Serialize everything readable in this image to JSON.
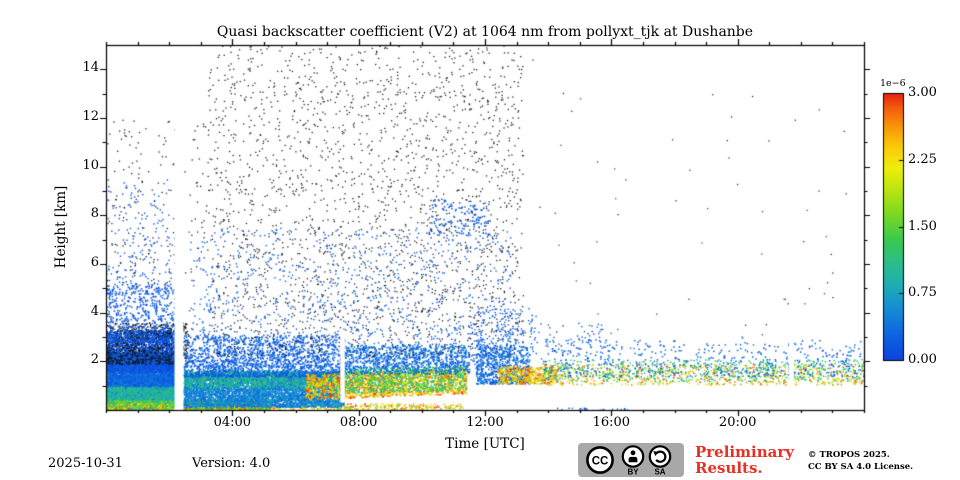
{
  "footer": {
    "date": "2025-10-31",
    "version": "Version: 4.0"
  },
  "license": {
    "preliminary_line1": "Preliminary",
    "preliminary_line2": "Results.",
    "copyright": "© TROPOS 2025.",
    "license_line": "CC BY SA 4.0 License.",
    "badge": {
      "cc": "CC",
      "by": "BY",
      "sa": "SA"
    }
  },
  "colors": {
    "preliminary_red": "#e73023",
    "badge_bg": "#a8a8a8",
    "noise_black": "#151515",
    "frame": "#000000"
  },
  "chart_data": {
    "type": "scatter",
    "title": "Quasi backscatter coefficient (V2) at 1064 nm from pollyxt_tjk at Dushanbe",
    "xlabel": "Time [UTC]",
    "ylabel": "Height [km]",
    "x_range_hours": [
      0,
      24
    ],
    "x_major_ticks": [
      {
        "hour": 4,
        "label": "04:00"
      },
      {
        "hour": 8,
        "label": "08:00"
      },
      {
        "hour": 12,
        "label": "12:00"
      },
      {
        "hour": 16,
        "label": "16:00"
      },
      {
        "hour": 20,
        "label": "20:00"
      }
    ],
    "x_minor_step_hours": 1,
    "y_range_km": [
      0,
      15
    ],
    "y_major_ticks": [
      2,
      4,
      6,
      8,
      10,
      12,
      14
    ],
    "y_minor_step_km": 1,
    "grid": false,
    "colorbar": {
      "scale_label": "1e−6",
      "min": 0.0,
      "max": 3.0,
      "tick_labels": [
        "3.00",
        "2.25",
        "1.50",
        "0.75",
        "0.00"
      ],
      "tick_values": [
        3.0,
        2.25,
        1.5,
        0.75,
        0.0
      ],
      "colormap": [
        [
          0.0,
          "#0b44dd"
        ],
        [
          0.1,
          "#0f66e2"
        ],
        [
          0.2,
          "#1690d2"
        ],
        [
          0.28,
          "#1fadb4"
        ],
        [
          0.36,
          "#2bbd8a"
        ],
        [
          0.45,
          "#3bc951"
        ],
        [
          0.55,
          "#7ed921"
        ],
        [
          0.65,
          "#c3e70e"
        ],
        [
          0.72,
          "#f0ee0a"
        ],
        [
          0.8,
          "#fbc90a"
        ],
        [
          0.87,
          "#f99908"
        ],
        [
          0.94,
          "#f4600d"
        ],
        [
          1.0,
          "#e72113"
        ]
      ]
    },
    "regions": [
      {
        "name": "night-plume-teal",
        "t": [
          0,
          2.2
        ],
        "h": [
          0.2,
          1.45
        ],
        "n": 3200,
        "v": [
          0.3,
          0.85
        ],
        "s": 1.8
      },
      {
        "name": "night-plume-green",
        "t": [
          0,
          2.2
        ],
        "h": [
          0.25,
          1.15
        ],
        "n": 1100,
        "v": [
          0.7,
          1.25
        ],
        "s": 1.7
      },
      {
        "name": "night-plume-blue",
        "t": [
          0,
          2.2
        ],
        "h": [
          1.0,
          2.4
        ],
        "n": 2600,
        "v": [
          0.1,
          0.5
        ],
        "s": 1.8
      },
      {
        "name": "night-plume-deepblue",
        "t": [
          0,
          2.2
        ],
        "h": [
          1.6,
          3.3
        ],
        "n": 1700,
        "v": [
          0.0,
          0.3
        ],
        "s": 1.7,
        "bias": 1.2
      },
      {
        "name": "night-dark-specks",
        "t": [
          0,
          2.6
        ],
        "h": [
          1.9,
          3.6
        ],
        "n": 900,
        "black": true,
        "s": 1.3,
        "bias": 1.2
      },
      {
        "name": "night-upper-blue",
        "t": [
          0,
          2.2
        ],
        "h": [
          2.8,
          5.2
        ],
        "n": 650,
        "v": [
          0.0,
          0.35
        ],
        "s": 1.5,
        "bias": 1.7
      },
      {
        "name": "night-top-sparse",
        "t": [
          0,
          2.3
        ],
        "h": [
          4.8,
          9.5
        ],
        "n": 260,
        "v": [
          0.0,
          0.3
        ],
        "s": 1.4,
        "bias": 1.9
      },
      {
        "name": "night-high-specks",
        "t": [
          0,
          3.2
        ],
        "h": [
          5.0,
          12.0
        ],
        "n": 170,
        "black": true,
        "s": 1.25
      },
      {
        "name": "bottom-yellow-band",
        "t": [
          0,
          5.2
        ],
        "h": [
          0.03,
          0.42
        ],
        "n": 2400,
        "v": [
          0.85,
          1.75
        ],
        "s": 1.8
      },
      {
        "name": "bottom-hot-specks",
        "t": [
          0,
          4.5
        ],
        "h": [
          0.02,
          0.3
        ],
        "n": 200,
        "v": [
          1.9,
          3.0
        ],
        "s": 1.5
      },
      {
        "name": "bottom-red-line",
        "t": [
          3.5,
          11.3
        ],
        "h": [
          0.03,
          0.28
        ],
        "n": 430,
        "v": [
          1.5,
          3.0
        ],
        "s": 1.5
      },
      {
        "name": "morning-teal-mass",
        "t": [
          2.45,
          7.5
        ],
        "h": [
          0.15,
          1.6
        ],
        "n": 4300,
        "v": [
          0.25,
          0.8
        ],
        "s": 1.8
      },
      {
        "name": "morning-green-top",
        "t": [
          2.45,
          7.6
        ],
        "h": [
          0.95,
          1.65
        ],
        "n": 950,
        "v": [
          0.7,
          1.3
        ],
        "s": 1.7
      },
      {
        "name": "morning-blue-upper",
        "t": [
          2.45,
          7.5
        ],
        "h": [
          1.4,
          3.1
        ],
        "n": 1500,
        "v": [
          0.05,
          0.45
        ],
        "s": 1.6,
        "bias": 1.5
      },
      {
        "name": "red-band",
        "t": [
          6.3,
          11.4
        ],
        "h": [
          0.45,
          1.5
        ],
        "n": 1500,
        "v": [
          1.8,
          3.0
        ],
        "s": 1.7,
        "shift": 0.25
      },
      {
        "name": "midmorning-yellow",
        "t": [
          7.5,
          11.4
        ],
        "h": [
          0.7,
          1.7
        ],
        "n": 750,
        "v": [
          0.9,
          1.7
        ],
        "s": 1.6,
        "shift": 0.15
      },
      {
        "name": "midmorning-teal-upper",
        "t": [
          7.5,
          11.5
        ],
        "h": [
          1.5,
          2.7
        ],
        "n": 850,
        "v": [
          0.1,
          0.6
        ],
        "s": 1.6
      },
      {
        "name": "day-noise-black",
        "t": [
          3.2,
          13.2
        ],
        "h": [
          2.2,
          15.0
        ],
        "n": 2300,
        "black": true,
        "s": 1.25,
        "bias": 1.1
      },
      {
        "name": "day-noise-blue",
        "t": [
          2.6,
          12.8
        ],
        "h": [
          1.8,
          7.5
        ],
        "n": 1400,
        "v": [
          0.0,
          0.45
        ],
        "s": 1.4,
        "bias": 1.7
      },
      {
        "name": "cirrus-patch",
        "t": [
          10.2,
          12.1
        ],
        "h": [
          7.2,
          8.7
        ],
        "n": 140,
        "v": [
          0.0,
          0.35
        ],
        "s": 1.5
      },
      {
        "name": "midday-blue-cluster",
        "t": [
          11.7,
          13.4
        ],
        "h": [
          1.1,
          2.7
        ],
        "n": 620,
        "v": [
          0.05,
          0.6
        ],
        "s": 1.6,
        "bias": 1.2
      },
      {
        "name": "midday-upper-sparse",
        "t": [
          11.6,
          13.6
        ],
        "h": [
          2.5,
          4.2
        ],
        "n": 160,
        "v": [
          0.0,
          0.4
        ],
        "s": 1.4
      },
      {
        "name": "early-afternoon-orange",
        "t": [
          12.4,
          14.3
        ],
        "h": [
          1.1,
          1.8
        ],
        "n": 420,
        "v": [
          1.7,
          3.0
        ],
        "s": 1.6
      },
      {
        "name": "evening-layer-warm",
        "t": [
          13.8,
          24
        ],
        "h": [
          1.05,
          1.9
        ],
        "n": 760,
        "v": [
          1.5,
          3.0
        ],
        "s": 1.5
      },
      {
        "name": "evening-layer-green",
        "t": [
          13.8,
          24
        ],
        "h": [
          1.2,
          2.1
        ],
        "n": 540,
        "v": [
          0.7,
          1.5
        ],
        "s": 1.5
      },
      {
        "name": "evening-layer-blue",
        "t": [
          13.8,
          24
        ],
        "h": [
          1.4,
          2.9
        ],
        "n": 470,
        "v": [
          0.0,
          0.5
        ],
        "s": 1.5,
        "bias": 1.4
      },
      {
        "name": "afternoon-mid-sparse",
        "t": [
          13.4,
          16
        ],
        "h": [
          2.0,
          3.6
        ],
        "n": 90,
        "v": [
          0.0,
          0.4
        ],
        "s": 1.4
      },
      {
        "name": "surface-specks-afternoon",
        "t": [
          14.2,
          16.5
        ],
        "h": [
          0.0,
          0.12
        ],
        "n": 25,
        "v": [
          0.0,
          0.5
        ],
        "s": 1.4
      },
      {
        "name": "evening-high-sparse-blue",
        "t": [
          14,
          24
        ],
        "h": [
          2.5,
          13.0
        ],
        "n": 40,
        "v": [
          0.0,
          0.35
        ],
        "s": 1.3,
        "bias": 2.0
      },
      {
        "name": "evening-high-sparse-black",
        "t": [
          13.5,
          24
        ],
        "h": [
          2.5,
          14.5
        ],
        "n": 28,
        "black": true,
        "s": 1.2
      }
    ],
    "data_gaps": [
      {
        "t": [
          2.17,
          2.45
        ],
        "h": [
          0,
          15
        ]
      },
      {
        "t": [
          7.42,
          7.56
        ],
        "h": [
          0.3,
          3.2
        ]
      },
      {
        "t": [
          21.62,
          21.78
        ],
        "h": [
          0.9,
          3.0
        ]
      }
    ]
  }
}
